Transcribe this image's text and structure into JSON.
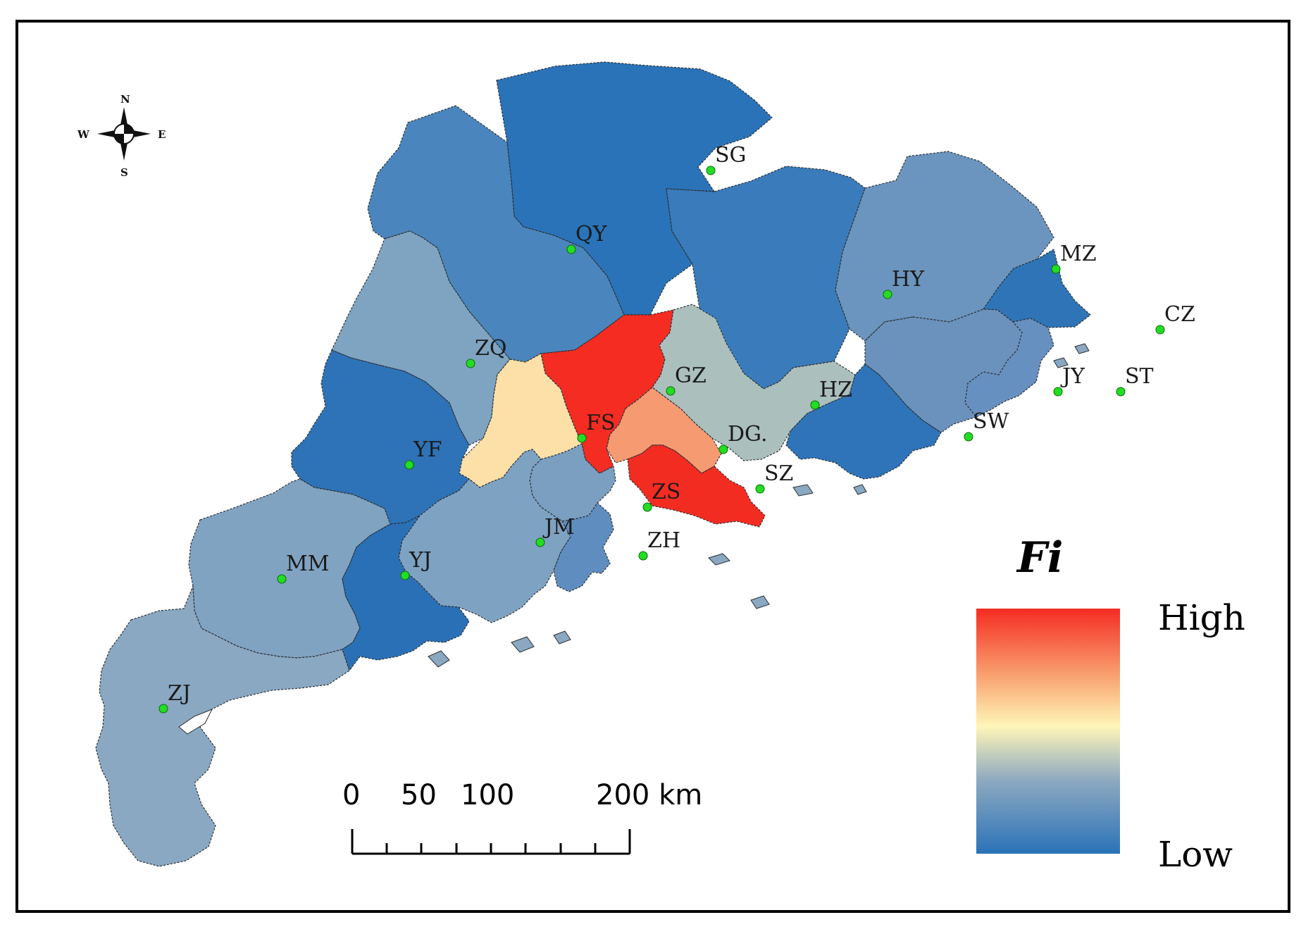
{
  "compass": {
    "north": "N",
    "south": "S",
    "east": "E",
    "west": "W"
  },
  "regions": [
    {
      "code": "SG",
      "name_label": "SG",
      "level": 0.03,
      "color": "#2a73b8"
    },
    {
      "code": "QY",
      "name_label": "QY",
      "level": 0.18,
      "color": "#4a86bd"
    },
    {
      "code": "HY",
      "name_label": "HY",
      "level": 0.12,
      "color": "#3a7bbb"
    },
    {
      "code": "MZ",
      "name_label": "MZ",
      "level": 0.3,
      "color": "#6b95be"
    },
    {
      "code": "CZ",
      "name_label": "CZ",
      "level": 0.05,
      "color": "#2e74b7"
    },
    {
      "code": "ZQ",
      "name_label": "ZQ",
      "level": 0.36,
      "color": "#7fa4c2"
    },
    {
      "code": "GZ",
      "name_label": "GZ",
      "level": 1.0,
      "color": "#f42c22"
    },
    {
      "code": "HZ",
      "name_label": "HZ",
      "level": 0.5,
      "color": "#abbfbd"
    },
    {
      "code": "JY",
      "name_label": "JY",
      "level": 0.3,
      "color": "#6b92bd"
    },
    {
      "code": "ST",
      "name_label": "ST",
      "level": 0.28,
      "color": "#6690bf"
    },
    {
      "code": "SW",
      "name_label": "SW",
      "level": 0.05,
      "color": "#2f74b8"
    },
    {
      "code": "FS",
      "name_label": "FS",
      "level": 0.7,
      "color": "#fde0a8"
    },
    {
      "code": "DG",
      "name_label": "DG.",
      "level": 0.85,
      "color": "#f69a72"
    },
    {
      "code": "SZ",
      "name_label": "SZ",
      "level": 0.98,
      "color": "#f32c22"
    },
    {
      "code": "YF",
      "name_label": "YF",
      "level": 0.06,
      "color": "#2e73b7"
    },
    {
      "code": "ZS",
      "name_label": "ZS",
      "level": 0.32,
      "color": "#7a9fc0"
    },
    {
      "code": "JM",
      "name_label": "JM",
      "level": 0.34,
      "color": "#7ea2c2"
    },
    {
      "code": "ZH",
      "name_label": "ZH",
      "level": 0.24,
      "color": "#5f8dbf"
    },
    {
      "code": "MM",
      "name_label": "MM",
      "level": 0.36,
      "color": "#81a3c2"
    },
    {
      "code": "YJ",
      "name_label": "YJ",
      "level": 0.02,
      "color": "#2a70b6"
    },
    {
      "code": "ZJ",
      "name_label": "ZJ",
      "level": 0.38,
      "color": "#8aa8c2"
    }
  ],
  "scale_bar": {
    "ticks": [
      "0",
      "50",
      "100",
      "200 km"
    ]
  },
  "legend": {
    "title": "Fi",
    "high_label": "High",
    "low_label": "Low",
    "gradient": [
      "#2a73b8",
      "#8ea9c0",
      "#fff6b8",
      "#f9a472",
      "#f42c22"
    ]
  },
  "colors": {
    "frame": "#000000",
    "background": "#ffffff",
    "city_marker": "#22dd22"
  }
}
